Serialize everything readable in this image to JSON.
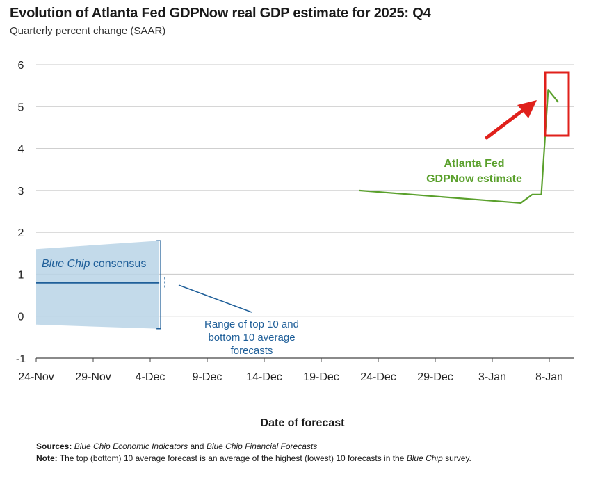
{
  "title": "Evolution of Atlanta Fed GDPNow real GDP estimate for 2025: Q4",
  "subtitle": "Quarterly percent change (SAAR)",
  "chart_data": {
    "type": "line",
    "title": "Evolution of Atlanta Fed GDPNow real GDP estimate for 2025: Q4",
    "subtitle": "Quarterly percent change (SAAR)",
    "xlabel": "Date of forecast",
    "ylabel": "Quarterly percent change (SAAR)",
    "ylim": [
      -1,
      6
    ],
    "yticks": [
      -1,
      0,
      1,
      2,
      3,
      4,
      5,
      6
    ],
    "xlim_days": [
      0,
      47
    ],
    "xticks": [
      {
        "day": 0,
        "label": "24-Nov"
      },
      {
        "day": 5,
        "label": "29-Nov"
      },
      {
        "day": 10,
        "label": "4-Dec"
      },
      {
        "day": 15,
        "label": "9-Dec"
      },
      {
        "day": 20,
        "label": "14-Dec"
      },
      {
        "day": 25,
        "label": "19-Dec"
      },
      {
        "day": 30,
        "label": "24-Dec"
      },
      {
        "day": 35,
        "label": "29-Dec"
      },
      {
        "day": 40,
        "label": "3-Jan"
      },
      {
        "day": 45,
        "label": "8-Jan"
      }
    ],
    "grid": true,
    "series": [
      {
        "name": "Atlanta Fed GDPNow estimate",
        "color": "#5aa02c",
        "points": [
          [
            28.3,
            3.0
          ],
          [
            42.5,
            2.7
          ],
          [
            43.5,
            2.9
          ],
          [
            44.3,
            2.9
          ],
          [
            44.9,
            5.4
          ],
          [
            45.8,
            5.1
          ]
        ]
      },
      {
        "name": "Blue Chip consensus",
        "color": "#1f5f99",
        "points": [
          [
            0,
            0.8
          ],
          [
            10.8,
            0.8
          ]
        ]
      }
    ],
    "range_band": {
      "name": "Range of top 10 and bottom 10 average forecasts",
      "color": "#b8d3e6",
      "upper": [
        [
          0,
          1.6
        ],
        [
          10.8,
          1.8
        ]
      ],
      "lower": [
        [
          0,
          -0.2
        ],
        [
          10.8,
          -0.3
        ]
      ]
    },
    "annotations": {
      "gdpnow_label_line1": "Atlanta Fed",
      "gdpnow_label_line2": "GDPNow estimate",
      "bluechip_label_italic": "Blue Chip",
      "bluechip_label_rest": " consensus",
      "range_label_line1": "Range of top 10 and",
      "range_label_line2": "bottom 10 average",
      "range_label_line3": "forecasts"
    },
    "highlight_color": "#e0201b"
  },
  "footer": {
    "sources_label": "Sources:",
    "sources_italic_1": "Blue Chip Economic Indicators",
    "sources_and": " and ",
    "sources_italic_2": "Blue Chip Financial Forecasts",
    "note_label": "Note:",
    "note_text_1": " The top (bottom) 10 average forecast is an average of the highest (lowest) 10 forecasts in the ",
    "note_italic": "Blue Chip",
    "note_text_2": " survey."
  }
}
